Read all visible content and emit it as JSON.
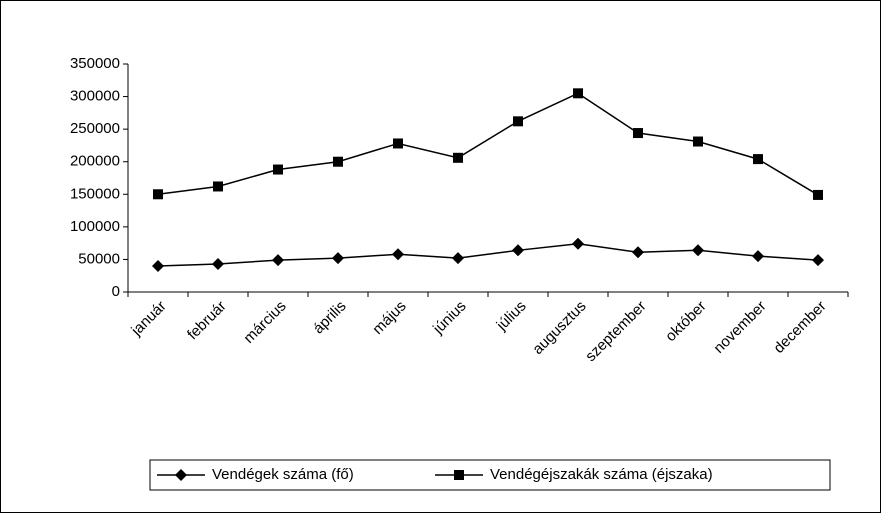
{
  "chart_data": {
    "type": "line",
    "categories": [
      "január",
      "február",
      "március",
      "április",
      "május",
      "június",
      "július",
      "augusztus",
      "szeptember",
      "október",
      "november",
      "december"
    ],
    "series": [
      {
        "name": "Vendégek száma (fő)",
        "color": "#000000",
        "marker": "diamond",
        "values": [
          40000,
          43000,
          49000,
          52000,
          58000,
          52000,
          64000,
          74000,
          61000,
          64000,
          55000,
          49000
        ]
      },
      {
        "name": "Vendégéjszakák száma (éjszaka)",
        "color": "#000000",
        "marker": "square",
        "values": [
          150000,
          162000,
          188000,
          200000,
          228000,
          206000,
          262000,
          305000,
          244000,
          231000,
          204000,
          149000
        ]
      }
    ],
    "ylim": [
      0,
      350000
    ],
    "yticks": [
      0,
      50000,
      100000,
      150000,
      200000,
      250000,
      300000,
      350000
    ],
    "grid": false,
    "legend": "bottom"
  }
}
